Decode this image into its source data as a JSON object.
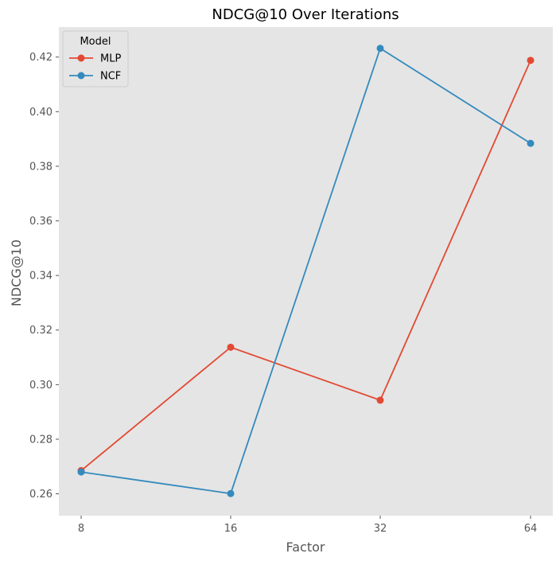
{
  "chart_data": {
    "type": "line",
    "title": "NDCG@10 Over Iterations",
    "xlabel": "Factor",
    "ylabel": "NDCG@10",
    "categories": [
      "8",
      "16",
      "32",
      "64"
    ],
    "ylim": [
      0.252,
      0.431
    ],
    "yticks": [
      0.26,
      0.28,
      0.3,
      0.32,
      0.34,
      0.36,
      0.38,
      0.4,
      0.42
    ],
    "ytick_labels": [
      "0.26",
      "0.28",
      "0.30",
      "0.32",
      "0.34",
      "0.36",
      "0.38",
      "0.40",
      "0.42"
    ],
    "grid": false,
    "legend": {
      "title": "Model",
      "placement": "top-left"
    },
    "series": [
      {
        "name": "MLP",
        "color": "#E24A33",
        "values": [
          0.2685,
          0.3137,
          0.2943,
          0.4188
        ]
      },
      {
        "name": "NCF",
        "color": "#348ABD",
        "values": [
          0.268,
          0.2601,
          0.4232,
          0.3884
        ]
      }
    ],
    "background": "#E5E5E5"
  }
}
